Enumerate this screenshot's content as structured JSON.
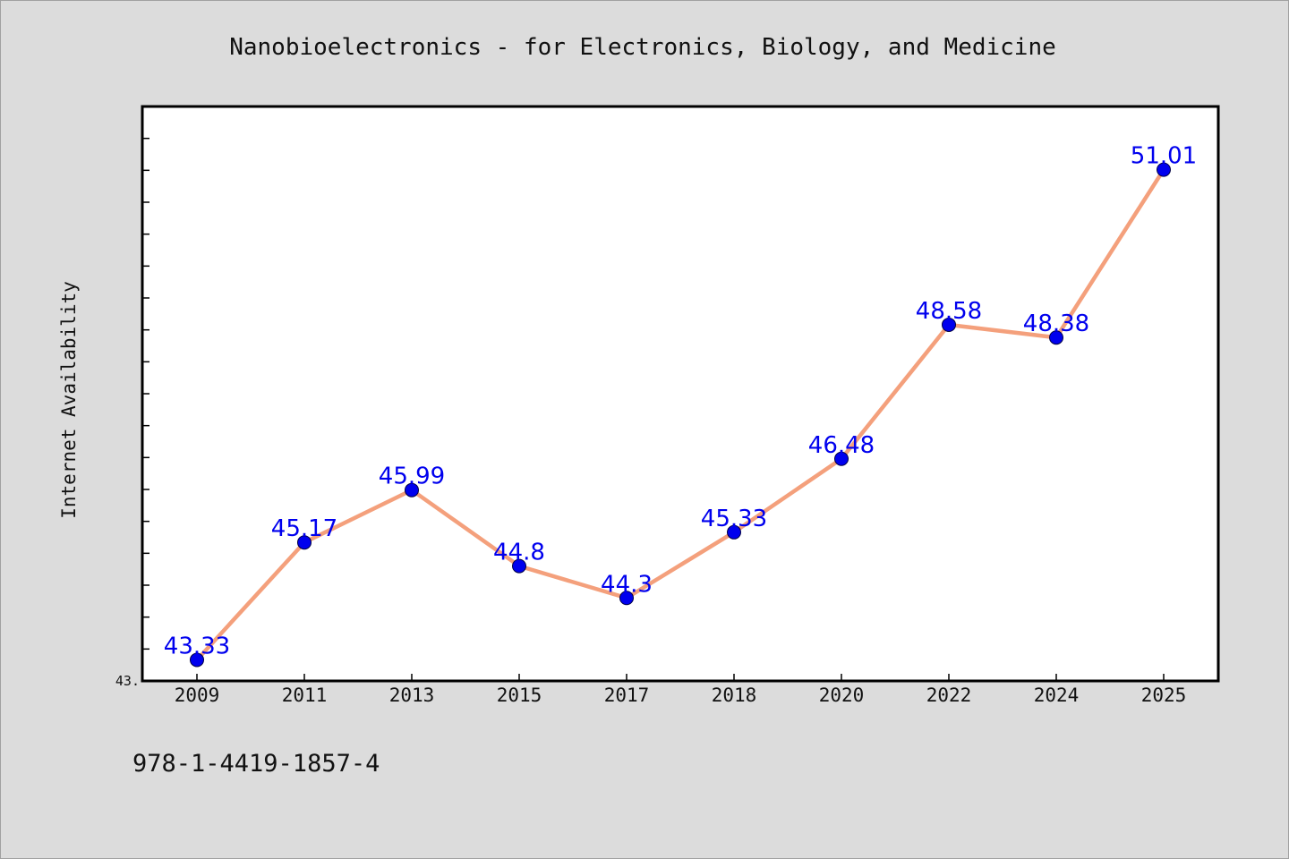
{
  "chart_data": {
    "type": "line",
    "title": "Nanobioelectronics - for Electronics, Biology, and Medicine",
    "xlabel": "",
    "ylabel": "Internet Availability",
    "categories": [
      "2009",
      "2011",
      "2013",
      "2015",
      "2017",
      "2018",
      "2020",
      "2022",
      "2024",
      "2025"
    ],
    "series": [
      {
        "values": [
          43.33,
          45.17,
          45.99,
          44.8,
          44.3,
          45.33,
          46.48,
          48.58,
          48.38,
          51.01
        ],
        "data_labels": [
          "43.33",
          "45.17",
          "45.99",
          "44.8",
          "44.3",
          "45.33",
          "46.48",
          "48.58",
          "48.38",
          "51.01"
        ]
      }
    ],
    "ylim": [
      43.0,
      52.0
    ],
    "ytick_labels": [
      "43."
    ],
    "y_minor_tick_step": 0.5,
    "grid": false,
    "legend": "none",
    "line_color": "#f4a07c",
    "marker_color": "#0000ee",
    "label_color": "#0000ee",
    "plot_background": "#ffffff",
    "figure_background": "#dcdcdc"
  },
  "footnote": "978-1-4419-1857-4"
}
